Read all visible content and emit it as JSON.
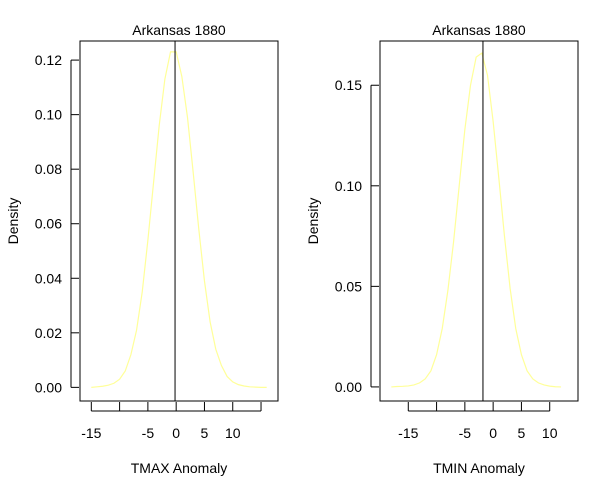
{
  "chart_data": [
    {
      "type": "line",
      "title": "Arkansas 1880",
      "xlabel": "TMAX Anomaly",
      "ylabel": "Density",
      "xlim": [
        -17,
        18
      ],
      "ylim": [
        -0.005,
        0.127
      ],
      "x_ticks": [
        -15,
        -10,
        -5,
        0,
        5,
        10,
        15
      ],
      "x_tick_labels": [
        "-15",
        "",
        "-5",
        "0",
        "5",
        "10",
        ""
      ],
      "y_ticks": [
        0.0,
        0.02,
        0.04,
        0.06,
        0.08,
        0.1,
        0.12
      ],
      "y_tick_labels": [
        "0.00",
        "0.02",
        "0.04",
        "0.06",
        "0.08",
        "0.10",
        "0.12"
      ],
      "vline": -0.2,
      "vline_color": "#000000",
      "line_color": "#ffff99",
      "series": [
        {
          "x": [
            -15,
            -14,
            -13,
            -12,
            -11,
            -10,
            -9,
            -8,
            -7,
            -6,
            -5,
            -4,
            -3,
            -2,
            -1,
            0,
            1,
            2,
            3,
            4,
            5,
            6,
            7,
            8,
            9,
            10,
            11,
            12,
            13,
            14,
            15,
            16
          ],
          "values": [
            0.0,
            0.0002,
            0.0004,
            0.0008,
            0.0015,
            0.003,
            0.006,
            0.012,
            0.021,
            0.035,
            0.054,
            0.075,
            0.096,
            0.113,
            0.123,
            0.123,
            0.114,
            0.099,
            0.079,
            0.058,
            0.039,
            0.024,
            0.014,
            0.008,
            0.004,
            0.002,
            0.001,
            0.0005,
            0.0002,
            0.0001,
            0.0,
            0.0
          ]
        }
      ]
    },
    {
      "type": "line",
      "title": "Arkansas 1880",
      "xlabel": "TMIN Anomaly",
      "ylabel": "Density",
      "xlim": [
        -20,
        15
      ],
      "ylim": [
        -0.007,
        0.172
      ],
      "x_ticks": [
        -15,
        -10,
        -5,
        0,
        5,
        10
      ],
      "x_tick_labels": [
        "-15",
        "",
        "-5",
        "0",
        "5",
        "10"
      ],
      "y_ticks": [
        0.0,
        0.05,
        0.1,
        0.15
      ],
      "y_tick_labels": [
        "0.00",
        "0.05",
        "0.10",
        "0.15"
      ],
      "vline": -1.8,
      "vline_color": "#000000",
      "line_color": "#ffff99",
      "series": [
        {
          "x": [
            -18,
            -17,
            -16,
            -15,
            -14,
            -13,
            -12,
            -11,
            -10,
            -9,
            -8,
            -7,
            -6,
            -5,
            -4,
            -3,
            -2,
            -1,
            0,
            1,
            2,
            3,
            4,
            5,
            6,
            7,
            8,
            9,
            10,
            11,
            12
          ],
          "values": [
            0.0,
            0.0002,
            0.0003,
            0.0005,
            0.001,
            0.002,
            0.004,
            0.008,
            0.016,
            0.029,
            0.048,
            0.072,
            0.1,
            0.128,
            0.15,
            0.164,
            0.166,
            0.155,
            0.132,
            0.104,
            0.075,
            0.049,
            0.029,
            0.016,
            0.008,
            0.004,
            0.002,
            0.001,
            0.0004,
            0.0001,
            0.0
          ]
        }
      ]
    }
  ]
}
